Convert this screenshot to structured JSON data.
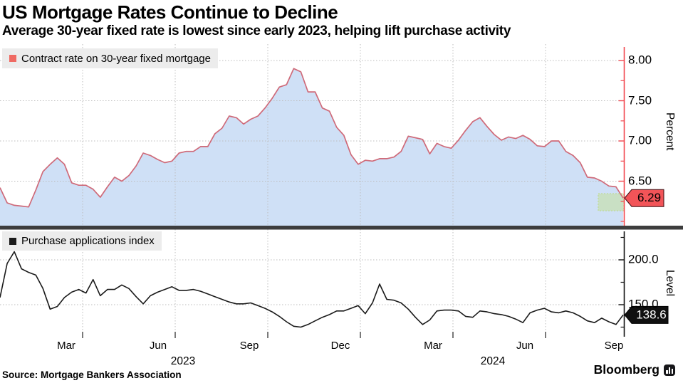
{
  "header": {
    "title": "US Mortgage Rates Continue to Decline",
    "subtitle": "Average 30-year fixed rate is lowest since early 2023, helping lift purchase activity"
  },
  "top_chart": {
    "legend_label": "Contract rate on 30-year fixed mortgage",
    "unit_label": "Percent",
    "ytick_labels": [
      "8.00",
      "7.50",
      "7.00",
      "6.50"
    ],
    "current_value_label": "6.29"
  },
  "bottom_chart": {
    "legend_label": "Purchase applications index",
    "unit_label": "Level",
    "ytick_labels": [
      "200.0",
      "150.0"
    ],
    "current_value_label": "138.6"
  },
  "x_axis": {
    "month_labels": [
      "Mar",
      "Jun",
      "Sep",
      "Dec",
      "Mar",
      "Jun",
      "Sep"
    ],
    "year_labels": [
      "2023",
      "2024"
    ]
  },
  "footer": {
    "source": "Source: Mortgage Bankers Association",
    "brand": "Bloomberg"
  },
  "colors": {
    "rate_line": "#cf6a79",
    "rate_fill": "#cfe0f6",
    "rate_axis": "#f2474e",
    "legend_marker_red": "#ef6a63",
    "badge_red_fill": "#f25458",
    "badge_red_stroke": "#3a1215",
    "badge_black_fill": "#101010",
    "index_line": "#1a1a1a",
    "index_axis": "#111111",
    "grid": "#bdbdbd",
    "divider": "#3d3d3d",
    "legend_bg": "#ececec",
    "highlight_fill": "rgba(197,224,155,0.55)",
    "highlight_border": "#c2dba4"
  },
  "chart_data": [
    {
      "type": "area",
      "name": "Contract rate on 30-year fixed mortgage",
      "ylabel": "Percent",
      "ylim": [
        5.95,
        8.2
      ],
      "yticks": [
        8.0,
        7.5,
        7.0,
        6.5
      ],
      "yticks_minor": [
        7.75,
        7.25,
        6.75,
        6.25,
        6.0
      ],
      "grid": true,
      "last_value": 6.29,
      "values": [
        6.42,
        6.23,
        6.2,
        6.19,
        6.18,
        6.39,
        6.62,
        6.71,
        6.79,
        6.71,
        6.48,
        6.45,
        6.45,
        6.4,
        6.3,
        6.43,
        6.55,
        6.5,
        6.57,
        6.69,
        6.85,
        6.82,
        6.77,
        6.73,
        6.75,
        6.85,
        6.87,
        6.87,
        6.93,
        6.93,
        7.09,
        7.16,
        7.31,
        7.29,
        7.21,
        7.27,
        7.31,
        7.41,
        7.53,
        7.67,
        7.7,
        7.9,
        7.86,
        7.61,
        7.61,
        7.41,
        7.37,
        7.17,
        7.07,
        6.83,
        6.71,
        6.76,
        6.75,
        6.78,
        6.78,
        6.8,
        6.87,
        7.06,
        7.04,
        7.02,
        6.84,
        6.97,
        6.93,
        6.91,
        7.01,
        7.13,
        7.24,
        7.29,
        7.18,
        7.08,
        7.01,
        7.05,
        7.03,
        7.07,
        7.02,
        6.94,
        6.93,
        7.0,
        7.0,
        6.87,
        6.82,
        6.73,
        6.55,
        6.54,
        6.5,
        6.44,
        6.43,
        6.29
      ]
    },
    {
      "type": "line",
      "name": "Purchase applications index",
      "ylabel": "Level",
      "ylim": [
        116.7,
        234.1
      ],
      "yticks": [
        200.0,
        150.0
      ],
      "yticks_minor": [
        225.0,
        175.0,
        125.0
      ],
      "grid": true,
      "last_value": 138.6,
      "values": [
        158,
        196,
        209,
        190,
        186,
        183,
        168,
        145,
        148,
        158,
        164,
        167,
        163,
        178,
        160,
        167,
        167,
        172,
        168,
        159,
        151,
        160,
        164,
        167,
        170,
        166,
        166,
        167,
        165,
        162,
        159,
        156,
        153,
        151,
        151,
        152,
        149,
        146,
        142,
        137,
        131,
        126,
        125,
        128,
        132,
        136,
        139,
        143,
        143,
        146,
        149,
        140,
        152,
        173,
        156,
        155,
        152,
        145,
        136,
        128,
        133,
        143,
        144,
        144,
        143,
        137,
        136,
        143,
        142,
        140,
        139,
        137,
        134,
        130,
        141,
        144,
        146,
        142,
        141,
        143,
        141,
        137,
        132,
        130,
        135,
        131,
        128,
        138.6
      ]
    }
  ]
}
